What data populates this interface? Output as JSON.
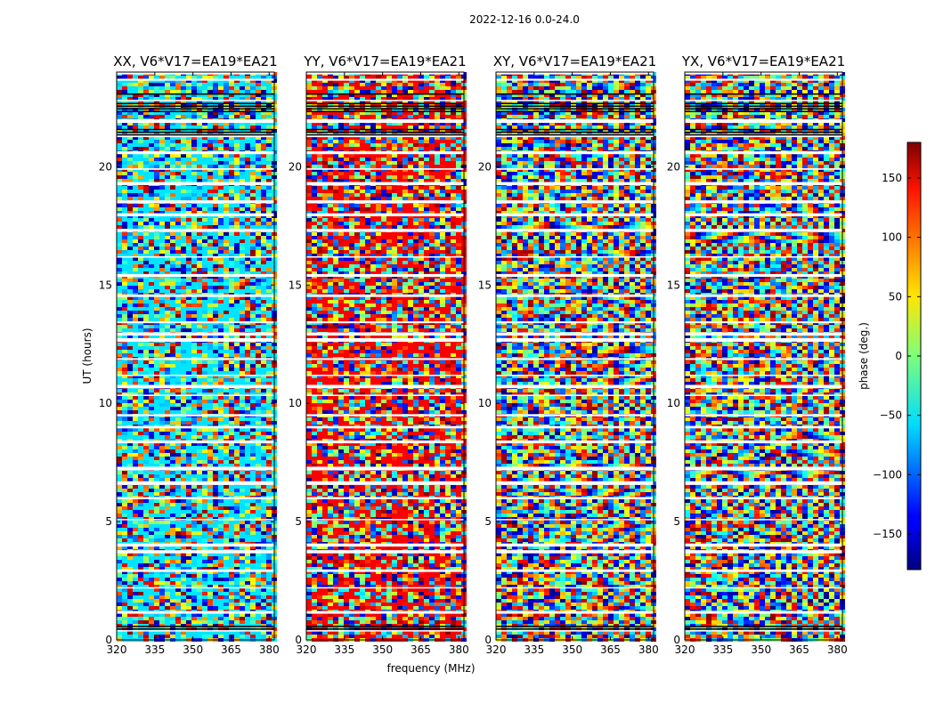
{
  "figure": {
    "suptitle": "2022-12-16 0.0-24.0",
    "xlabel": "frequency (MHz)",
    "ylabel": "UT (hours)"
  },
  "chart_data": {
    "type": "heatmap",
    "panels": [
      {
        "title": "XX, V6*V17=EA19*EA21",
        "tint": "cyan"
      },
      {
        "title": "YY, V6*V17=EA19*EA21",
        "tint": "red"
      },
      {
        "title": "XY, V6*V17=EA19*EA21",
        "tint": "none"
      },
      {
        "title": "YX, V6*V17=EA19*EA21",
        "tint": "none"
      }
    ],
    "xlim": [
      320,
      382
    ],
    "ylim": [
      0,
      24
    ],
    "xticks": [
      320,
      335,
      350,
      365,
      380
    ],
    "xtick_labels": [
      "320",
      "335",
      "350",
      "365",
      "380"
    ],
    "yticks": [
      0,
      5,
      10,
      15,
      20
    ],
    "ytick_labels": [
      "0",
      "5",
      "10",
      "15",
      "20"
    ],
    "colorbar": {
      "label": "phase (deg.)",
      "range": [
        -180,
        180
      ],
      "ticks": [
        -150,
        -100,
        -50,
        0,
        50,
        100,
        150
      ],
      "tick_labels": [
        "−150",
        "−100",
        "−50",
        "0",
        "50",
        "100",
        "150"
      ],
      "colormap": "jet"
    }
  }
}
